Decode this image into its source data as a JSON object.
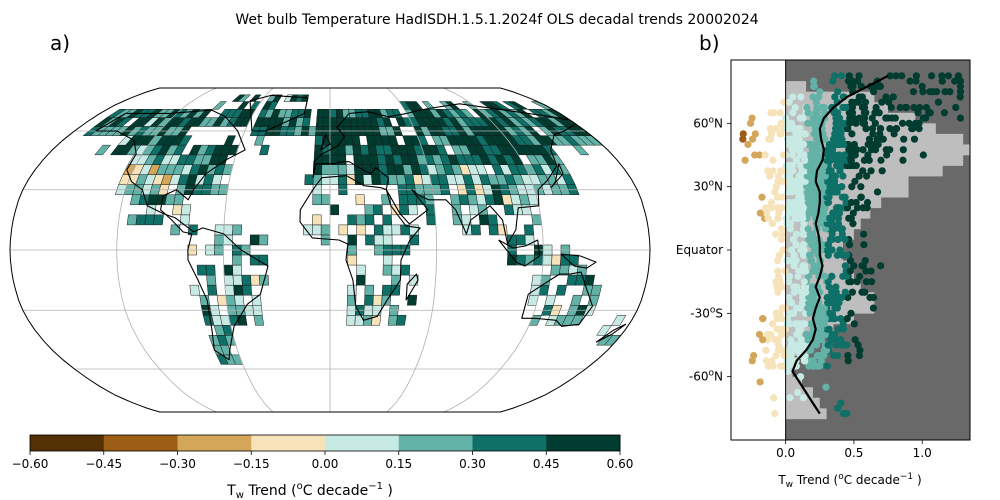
{
  "title": "Wet bulb Temperature HadISDH.1.5.1.2024f OLS decadal trends 20002024",
  "panel_a_label": "a)",
  "panel_b_label": "b)",
  "colors": {
    "scale": [
      "#543005",
      "#9c5d14",
      "#d3a659",
      "#f6e3ba",
      "#c7eae5",
      "#63b2a7",
      "#0f7068",
      "#003c30"
    ],
    "land_grey": "#bebebe",
    "panel_bg": "#696969"
  },
  "chart_data": [
    {
      "type": "heatmap",
      "description_kind": "gridded map",
      "projection": "robinson",
      "colorbar": {
        "ticks": [
          -0.6,
          -0.45,
          -0.3,
          -0.15,
          0.0,
          0.15,
          0.3,
          0.45,
          0.6
        ],
        "tick_labels": [
          "−0.60",
          "−0.45",
          "−0.30",
          "−0.15",
          "0.00",
          "0.15",
          "0.30",
          "0.45",
          "0.60"
        ],
        "label_main": "T",
        "label_sub": "w",
        "label_rest": " Trend (",
        "label_sup_o": "o",
        "label_unit": "C decade",
        "label_sup_exp": "−1",
        "label_close": " )"
      }
    },
    {
      "type": "scatter",
      "ylabels": [
        "60°N",
        "30°N",
        "Equator",
        "-30°S",
        "-60°N"
      ],
      "ylabel_values": [
        60,
        30,
        0,
        -30,
        -60
      ],
      "y_tick_text": [
        {
          "pre": "60",
          "sup": "o",
          "post": "N"
        },
        {
          "pre": "30",
          "sup": "o",
          "post": "N"
        },
        {
          "pre": "Equator",
          "sup": "",
          "post": ""
        },
        {
          "pre": "-30",
          "sup": "o",
          "post": "S"
        },
        {
          "pre": "-60",
          "sup": "o",
          "post": "N"
        }
      ],
      "xlim": [
        -0.4,
        1.35
      ],
      "ylim": [
        -90,
        90
      ],
      "xticks": [
        0.0,
        0.5,
        1.0
      ],
      "xtick_labels": [
        "0.0",
        "0.5",
        "1.0"
      ],
      "xlabel_main": "T",
      "xlabel_sub": "w",
      "xlabel_rest": " Trend (",
      "xlabel_sup_o": "o",
      "xlabel_unit": "C decade",
      "xlabel_sup_exp": "−1",
      "xlabel_close": " )",
      "mean_line": {
        "lat": [
          -77.5,
          -72.5,
          -67.5,
          -62.5,
          -57.5,
          -52.5,
          -47.5,
          -42.5,
          -37.5,
          -32.5,
          -27.5,
          -22.5,
          -17.5,
          -12.5,
          -7.5,
          -2.5,
          2.5,
          7.5,
          12.5,
          17.5,
          22.5,
          27.5,
          32.5,
          37.5,
          42.5,
          47.5,
          52.5,
          57.5,
          62.5,
          67.5,
          72.5,
          77.5,
          82.5
        ],
        "value": [
          0.25,
          0.2,
          0.15,
          0.1,
          0.05,
          0.08,
          0.15,
          0.2,
          0.22,
          0.2,
          0.22,
          0.25,
          0.22,
          0.25,
          0.27,
          0.25,
          0.25,
          0.24,
          0.22,
          0.24,
          0.25,
          0.25,
          0.22,
          0.23,
          0.27,
          0.28,
          0.26,
          0.25,
          0.28,
          0.35,
          0.45,
          0.6,
          0.75
        ]
      },
      "land_fraction": {
        "lat": [
          -77.5,
          -72.5,
          -67.5,
          -62.5,
          -57.5,
          -52.5,
          -47.5,
          -42.5,
          -37.5,
          -32.5,
          -27.5,
          -22.5,
          -17.5,
          -12.5,
          -7.5,
          -2.5,
          2.5,
          7.5,
          12.5,
          17.5,
          22.5,
          27.5,
          32.5,
          37.5,
          42.5,
          47.5,
          52.5,
          57.5,
          62.5,
          67.5,
          72.5,
          77.5,
          82.5
        ],
        "value": [
          0.3,
          0.25,
          0.2,
          0.12,
          0.05,
          0.05,
          0.12,
          0.2,
          0.35,
          0.5,
          0.65,
          0.65,
          0.55,
          0.5,
          0.45,
          0.42,
          0.42,
          0.5,
          0.55,
          0.62,
          0.7,
          0.9,
          0.9,
          1.15,
          1.3,
          1.35,
          1.3,
          1.1,
          0.95,
          0.75,
          0.65,
          0.15,
          0.0
        ]
      }
    }
  ]
}
